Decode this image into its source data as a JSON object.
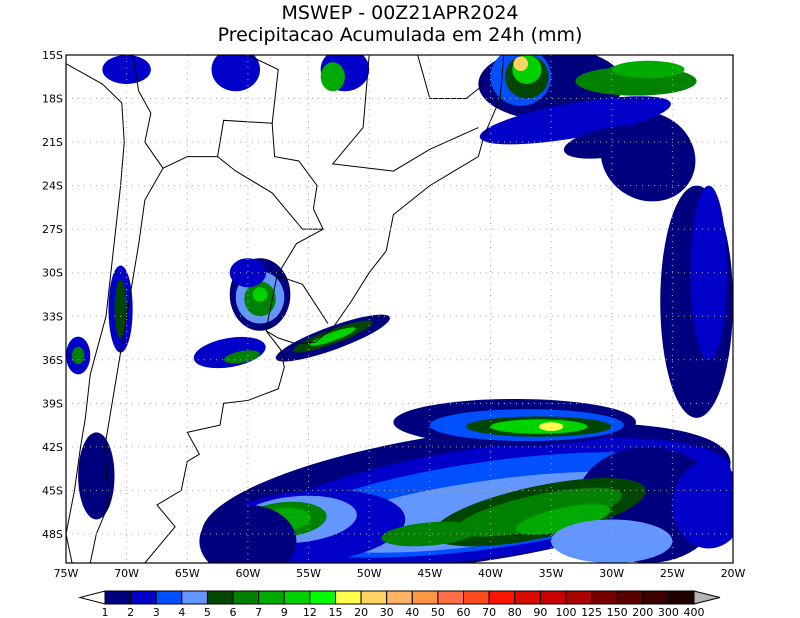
{
  "title": "MSWEP - 00Z21APR2024",
  "subtitle": "Precipitacao Acumulada em 24h (mm)",
  "map": {
    "lon_range": [
      -75,
      -20
    ],
    "lat_range": [
      -50,
      -15
    ],
    "grid": "dotted",
    "lat_labels": [
      "15S",
      "18S",
      "21S",
      "24S",
      "27S",
      "30S",
      "33S",
      "36S",
      "39S",
      "42S",
      "45S",
      "48S"
    ],
    "lon_labels": [
      "75W",
      "70W",
      "65W",
      "60W",
      "55W",
      "50W",
      "45W",
      "40W",
      "35W",
      "30W",
      "25W",
      "20W"
    ]
  },
  "colorbar": {
    "labels": [
      "1",
      "2",
      "3",
      "4",
      "5",
      "6",
      "7",
      "9",
      "12",
      "15",
      "20",
      "30",
      "40",
      "50",
      "60",
      "70",
      "80",
      "90",
      "100",
      "125",
      "150",
      "200",
      "300",
      "400"
    ],
    "colors": [
      "#00007f",
      "#0000c8",
      "#0050ff",
      "#6496ff",
      "#004600",
      "#008200",
      "#00aa00",
      "#00d200",
      "#00ff00",
      "#ffff4c",
      "#ffd264",
      "#ffb464",
      "#ff9646",
      "#ff6e46",
      "#ff4b1e",
      "#ff1400",
      "#dc0a00",
      "#c80000",
      "#aa0000",
      "#780000",
      "#5a0000",
      "#3c0000",
      "#200000"
    ],
    "under_color": "#ffffff",
    "over_color": "#b4b4b4"
  }
}
